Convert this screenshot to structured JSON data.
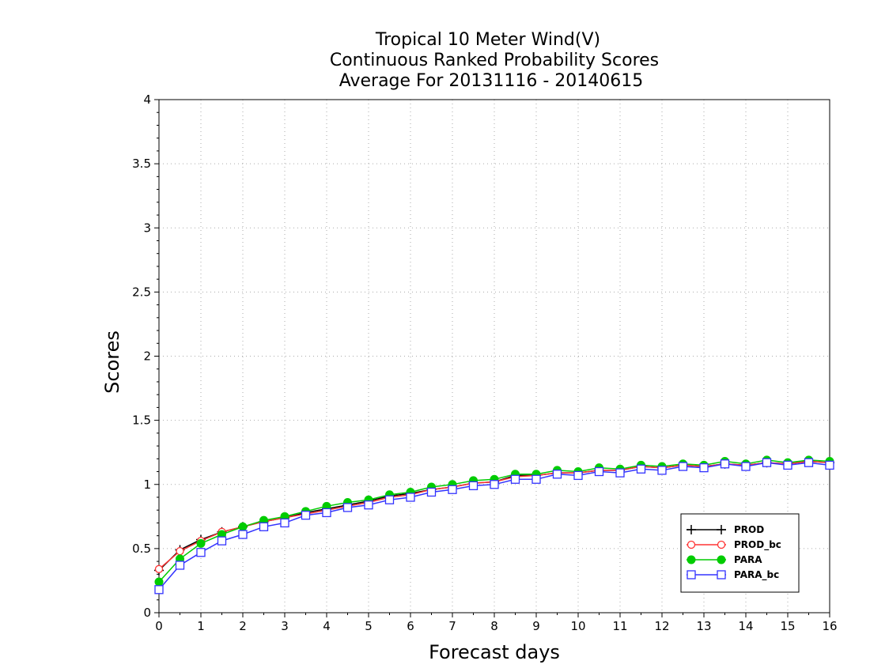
{
  "chart_data": {
    "type": "line",
    "title_lines": [
      "Tropical 10 Meter Wind(V)",
      "Continuous Ranked Probability Scores",
      "Average For 20131116 - 20140615"
    ],
    "xlabel": "Forecast days",
    "ylabel": "Scores",
    "xlim": [
      0,
      16
    ],
    "ylim": [
      0,
      4
    ],
    "xticks": [
      "0",
      "1",
      "2",
      "3",
      "4",
      "5",
      "6",
      "7",
      "8",
      "9",
      "10",
      "11",
      "12",
      "13",
      "14",
      "15",
      "16"
    ],
    "yticks": [
      "0",
      "0.5",
      "1",
      "1.5",
      "2",
      "2.5",
      "3",
      "3.5",
      "4"
    ],
    "grid": true,
    "legend_position": "bottom-right",
    "x": [
      0,
      0.5,
      1,
      1.5,
      2,
      2.5,
      3,
      3.5,
      4,
      4.5,
      5,
      5.5,
      6,
      6.5,
      7,
      7.5,
      8,
      8.5,
      9,
      9.5,
      10,
      10.5,
      11,
      11.5,
      12,
      12.5,
      13,
      13.5,
      14,
      14.5,
      15,
      15.5,
      16
    ],
    "series": [
      {
        "name": "PROD",
        "color": "#000000",
        "marker": "plus",
        "values": [
          0.33,
          0.49,
          0.57,
          0.63,
          0.67,
          0.71,
          0.74,
          0.78,
          0.81,
          0.84,
          0.87,
          0.91,
          0.93,
          0.96,
          0.98,
          1.01,
          1.02,
          1.07,
          1.07,
          1.09,
          1.09,
          1.11,
          1.11,
          1.14,
          1.13,
          1.15,
          1.14,
          1.16,
          1.15,
          1.17,
          1.16,
          1.18,
          1.17
        ]
      },
      {
        "name": "PROD_bc",
        "color": "#ff3333",
        "marker": "circle-open",
        "values": [
          0.34,
          0.48,
          0.56,
          0.63,
          0.67,
          0.71,
          0.74,
          0.77,
          0.8,
          0.83,
          0.86,
          0.9,
          0.92,
          0.96,
          0.98,
          1.01,
          1.02,
          1.06,
          1.07,
          1.09,
          1.09,
          1.11,
          1.11,
          1.14,
          1.13,
          1.15,
          1.14,
          1.16,
          1.15,
          1.17,
          1.16,
          1.18,
          1.17
        ]
      },
      {
        "name": "PARA",
        "color": "#00cc00",
        "marker": "circle-filled",
        "values": [
          0.24,
          0.42,
          0.54,
          0.61,
          0.67,
          0.72,
          0.75,
          0.79,
          0.83,
          0.86,
          0.88,
          0.92,
          0.94,
          0.98,
          1.0,
          1.03,
          1.04,
          1.08,
          1.08,
          1.11,
          1.1,
          1.13,
          1.12,
          1.15,
          1.14,
          1.16,
          1.15,
          1.18,
          1.16,
          1.19,
          1.17,
          1.19,
          1.18
        ]
      },
      {
        "name": "PARA_bc",
        "color": "#3333ff",
        "marker": "square-open",
        "values": [
          0.18,
          0.37,
          0.47,
          0.56,
          0.61,
          0.67,
          0.7,
          0.76,
          0.78,
          0.82,
          0.84,
          0.88,
          0.9,
          0.94,
          0.96,
          0.99,
          1.0,
          1.04,
          1.04,
          1.08,
          1.07,
          1.1,
          1.09,
          1.12,
          1.11,
          1.14,
          1.13,
          1.16,
          1.14,
          1.17,
          1.15,
          1.17,
          1.15
        ]
      }
    ]
  }
}
